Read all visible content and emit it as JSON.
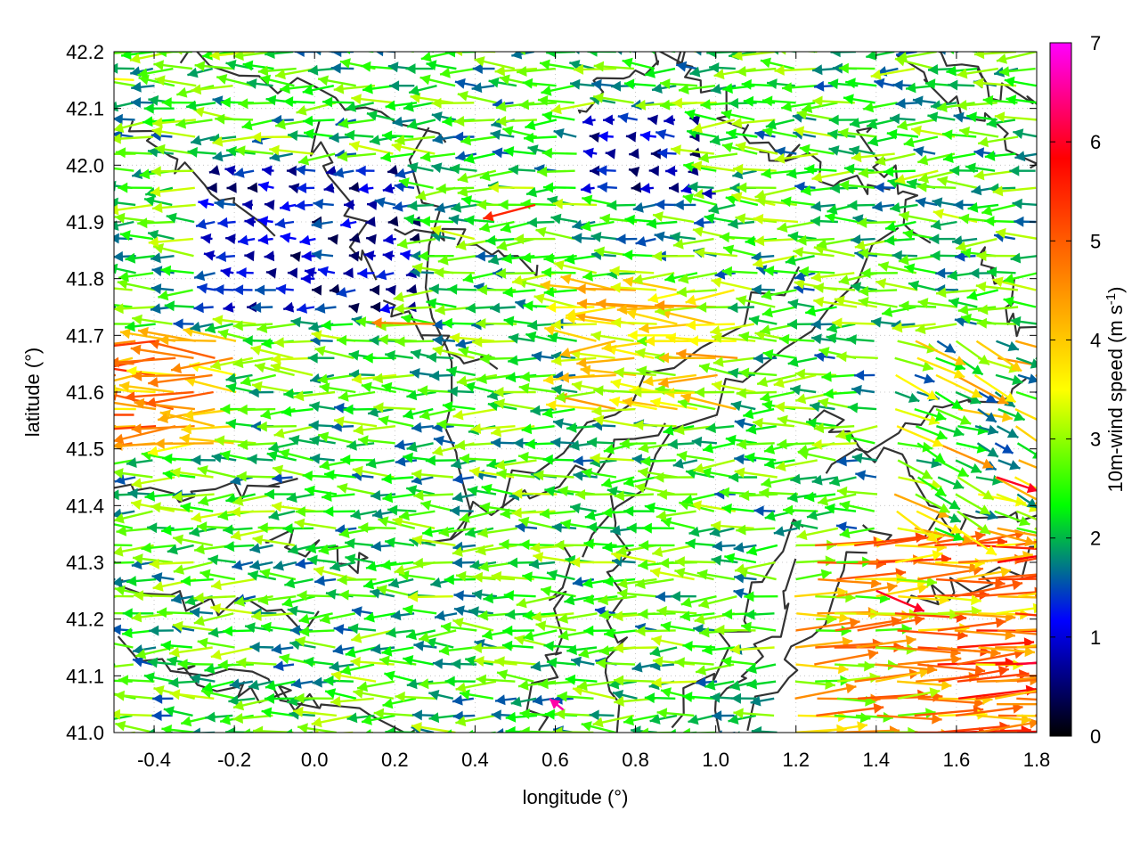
{
  "chart_data": {
    "type": "vector-field",
    "xlabel": "longitude (°)",
    "ylabel": "latitude (°)",
    "xlim": [
      -0.5,
      1.8
    ],
    "ylim": [
      41.0,
      42.2
    ],
    "xticks": [
      "-0.4",
      "-0.2",
      "0.0",
      "0.2",
      "0.4",
      "0.6",
      "0.8",
      "1.0",
      "1.2",
      "1.4",
      "1.6",
      "1.8"
    ],
    "xtick_values": [
      -0.4,
      -0.2,
      0.0,
      0.2,
      0.4,
      0.6,
      0.8,
      1.0,
      1.2,
      1.4,
      1.6,
      1.8
    ],
    "yticks": [
      "41.0",
      "41.1",
      "41.2",
      "41.3",
      "41.4",
      "41.5",
      "41.6",
      "41.7",
      "41.8",
      "41.9",
      "42.0",
      "42.1",
      "42.2"
    ],
    "ytick_values": [
      41.0,
      41.1,
      41.2,
      41.3,
      41.4,
      41.5,
      41.6,
      41.7,
      41.8,
      41.9,
      42.0,
      42.1,
      42.2
    ],
    "grid": true,
    "colorbar": {
      "label_main": "10m-wind speed (m s",
      "label_sup": "-1",
      "label_end": ")",
      "ticks": [
        "0",
        "1",
        "2",
        "3",
        "4",
        "5",
        "6",
        "7"
      ],
      "tick_values": [
        0,
        1,
        2,
        3,
        4,
        5,
        6,
        7
      ],
      "range": [
        0,
        7
      ],
      "stops": [
        "#000000",
        "#0000ff",
        "#00ff00",
        "#ffff00",
        "#ff8000",
        "#ff0000",
        "#ff00ff"
      ]
    },
    "contour_color": "#333333",
    "vector_samples": [
      {
        "lon": -0.45,
        "lat": 42.15,
        "u": -3.5,
        "v": 0.2,
        "speed": 3.5
      },
      {
        "lon": -0.35,
        "lat": 42.1,
        "u": -2.2,
        "v": 0.0,
        "speed": 2.2
      },
      {
        "lon": -0.45,
        "lat": 41.65,
        "u": -4.8,
        "v": 0.2,
        "speed": 4.8
      },
      {
        "lon": -0.45,
        "lat": 41.56,
        "u": -5.2,
        "v": 0.0,
        "speed": 5.2
      },
      {
        "lon": 0.0,
        "lat": 41.8,
        "u": -1.0,
        "v": 0.0,
        "speed": 1.0
      },
      {
        "lon": 0.3,
        "lat": 41.72,
        "u": -4.6,
        "v": 0.1,
        "speed": 4.6
      },
      {
        "lon": 0.9,
        "lat": 41.7,
        "u": -3.5,
        "v": 0.0,
        "speed": 3.5
      },
      {
        "lon": 0.9,
        "lat": 41.6,
        "u": -3.2,
        "v": 0.0,
        "speed": 3.2
      },
      {
        "lon": 1.75,
        "lat": 41.1,
        "u": 5.0,
        "v": 0.0,
        "speed": 5.0
      },
      {
        "lon": 1.7,
        "lat": 41.05,
        "u": 4.5,
        "v": 0.0,
        "speed": 4.5
      },
      {
        "lon": 0.55,
        "lat": 41.93,
        "u": -3.8,
        "v": -1.0,
        "speed": 5.5
      },
      {
        "lon": 1.4,
        "lat": 41.25,
        "u": 3.5,
        "v": -1.5,
        "speed": 6.0
      },
      {
        "lon": 0.62,
        "lat": 41.04,
        "u": -1.0,
        "v": 0.8,
        "speed": 6.6
      },
      {
        "lon": 1.7,
        "lat": 41.45,
        "u": 3.0,
        "v": -1.0,
        "speed": 6.0
      },
      {
        "lon": 1.25,
        "lat": 41.2,
        "u": 1.5,
        "v": 0.0,
        "speed": 3.0
      },
      {
        "lon": 1.0,
        "lat": 41.95,
        "u": -1.0,
        "v": 0.0,
        "speed": 0.8
      }
    ]
  }
}
